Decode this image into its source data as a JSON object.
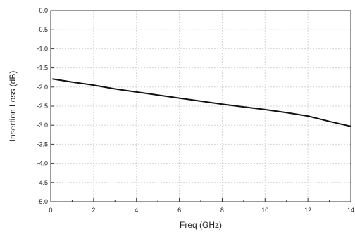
{
  "chart_data": {
    "type": "line",
    "title": "",
    "xlabel": "Freq (GHz)",
    "ylabel": "Insertion Loss (dB)",
    "xlim": [
      0,
      14
    ],
    "ylim": [
      -5.0,
      0.0
    ],
    "x_ticks": [
      0,
      2,
      4,
      6,
      8,
      10,
      12,
      14
    ],
    "x_tick_labels": [
      "0",
      "2",
      "4",
      "6",
      "8",
      "10",
      "12",
      "14"
    ],
    "y_ticks": [
      0.0,
      -0.5,
      -1.0,
      -1.5,
      -2.0,
      -2.5,
      -3.0,
      -3.5,
      -4.0,
      -4.5,
      -5.0
    ],
    "y_tick_labels": [
      "0.0",
      "-0.5",
      "-1.0",
      "-1.5",
      "-2.0",
      "-2.5",
      "-3.0",
      "-3.5",
      "-4.0",
      "-4.5",
      "-5.0"
    ],
    "grid": true,
    "legend": "none",
    "series": [
      {
        "color": "#111111",
        "x": [
          0.1,
          1,
          2,
          3,
          4,
          5,
          6,
          7,
          8,
          9,
          10,
          11,
          12,
          13,
          14
        ],
        "y": [
          -1.79,
          -1.87,
          -1.95,
          -2.05,
          -2.13,
          -2.21,
          -2.29,
          -2.37,
          -2.45,
          -2.52,
          -2.59,
          -2.67,
          -2.76,
          -2.9,
          -3.03
        ]
      }
    ]
  }
}
